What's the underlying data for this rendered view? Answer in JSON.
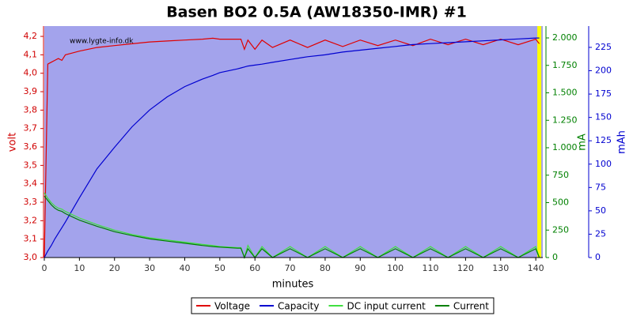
{
  "chart_data": {
    "type": "line",
    "title": "Basen BO2 0.5A (AW18350-IMR) #1",
    "xlabel": "minutes",
    "ylabel": "volt",
    "y2label": "mA",
    "y3label": "mAh",
    "annotation": "www.lygte-info.dk",
    "background": "#a3a3ec",
    "legend": "bottom",
    "marker_x": 141,
    "marker_color": "#ffff00",
    "xlim": [
      0,
      142
    ],
    "xticks": [
      0,
      10,
      20,
      30,
      40,
      50,
      60,
      70,
      80,
      90,
      100,
      110,
      120,
      130,
      140
    ],
    "ylim": [
      3.0,
      4.256
    ],
    "yticks": [
      {
        "value": 3.0,
        "label": "3,0"
      },
      {
        "value": 3.1,
        "label": "3,1"
      },
      {
        "value": 3.2,
        "label": "3,2"
      },
      {
        "value": 3.3,
        "label": "3,3"
      },
      {
        "value": 3.4,
        "label": "3,4"
      },
      {
        "value": 3.5,
        "label": "3,5"
      },
      {
        "value": 3.6,
        "label": "3,6"
      },
      {
        "value": 3.7,
        "label": "3,7"
      },
      {
        "value": 3.8,
        "label": "3,8"
      },
      {
        "value": 3.9,
        "label": "3,9"
      },
      {
        "value": 4.0,
        "label": "4,0"
      },
      {
        "value": 4.1,
        "label": "4,1"
      },
      {
        "value": 4.2,
        "label": "4,2"
      }
    ],
    "y2lim": [
      0,
      2108
    ],
    "y2ticks": [
      0,
      250,
      500,
      750,
      {
        "value": 1000,
        "label": "1.000"
      },
      {
        "value": 1250,
        "label": "1.250"
      },
      {
        "value": 1500,
        "label": "1.500"
      },
      {
        "value": 1750,
        "label": "1.750"
      },
      {
        "value": 2000,
        "label": "2.000"
      }
    ],
    "y3lim": [
      0,
      247.8
    ],
    "y3ticks": [
      0,
      25,
      50,
      75,
      100,
      125,
      150,
      175,
      200,
      225
    ],
    "x": [
      0,
      1,
      2,
      3,
      4,
      5,
      6,
      8,
      10,
      15,
      20,
      25,
      30,
      35,
      40,
      45,
      48,
      50,
      55,
      56,
      57,
      58,
      60,
      62,
      65,
      70,
      75,
      80,
      85,
      90,
      95,
      100,
      105,
      110,
      115,
      120,
      125,
      130,
      135,
      140,
      141
    ],
    "series": [
      {
        "name": "Voltage",
        "color": "#e00000",
        "axis": "y",
        "values": [
          3.0,
          4.05,
          4.06,
          4.07,
          4.08,
          4.07,
          4.1,
          4.11,
          4.12,
          4.14,
          4.15,
          4.16,
          4.17,
          4.175,
          4.18,
          4.185,
          4.19,
          4.185,
          4.185,
          4.185,
          4.13,
          4.18,
          4.13,
          4.18,
          4.14,
          4.18,
          4.14,
          4.18,
          4.145,
          4.18,
          4.15,
          4.18,
          4.15,
          4.185,
          4.155,
          4.185,
          4.155,
          4.185,
          4.155,
          4.185,
          4.16
        ]
      },
      {
        "name": "Capacity",
        "color": "#0000d0",
        "axis": "y3",
        "values": [
          0,
          7,
          13,
          20,
          26,
          32,
          38,
          51,
          64,
          95,
          118,
          140,
          158,
          172,
          183,
          191,
          195,
          198,
          202,
          203,
          204,
          205,
          206,
          207,
          209,
          212,
          215,
          217,
          220,
          222,
          224,
          226,
          228,
          229,
          230,
          231,
          232,
          233,
          234,
          235,
          235
        ]
      },
      {
        "name": "DC input current",
        "color": "#40e040",
        "axis": "y2",
        "values": [
          590,
          540,
          500,
          470,
          450,
          440,
          420,
          390,
          360,
          300,
          250,
          210,
          180,
          160,
          140,
          120,
          110,
          100,
          90,
          90,
          0,
          110,
          0,
          100,
          0,
          100,
          0,
          100,
          0,
          100,
          0,
          100,
          0,
          100,
          0,
          100,
          0,
          100,
          0,
          100,
          0
        ]
      },
      {
        "name": "Current",
        "color": "#008000",
        "axis": "y2",
        "values": [
          560,
          520,
          480,
          450,
          430,
          420,
          400,
          370,
          340,
          285,
          235,
          200,
          170,
          150,
          130,
          110,
          100,
          95,
          85,
          85,
          0,
          80,
          0,
          80,
          0,
          80,
          0,
          80,
          0,
          80,
          0,
          80,
          0,
          80,
          0,
          80,
          0,
          80,
          0,
          80,
          0
        ]
      }
    ]
  }
}
